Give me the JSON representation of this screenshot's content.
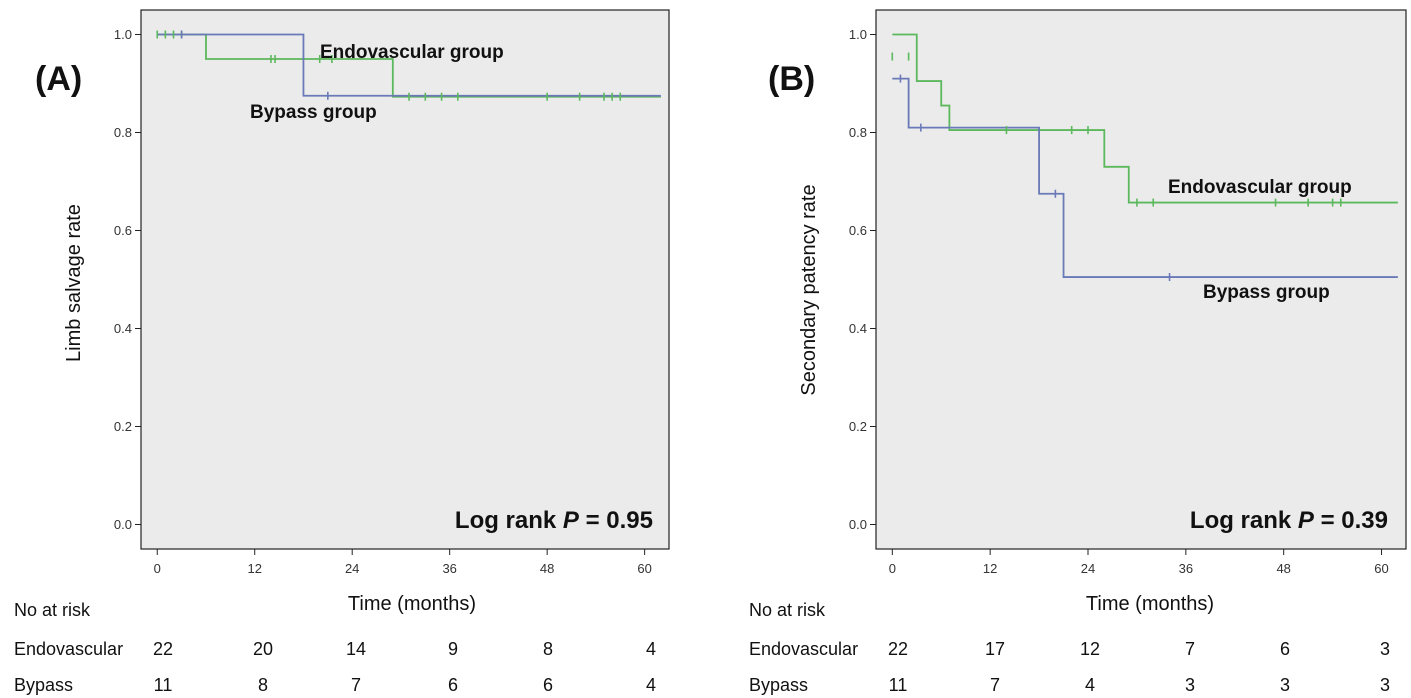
{
  "chart_data": [
    {
      "type": "line",
      "subtype": "kaplan-meier",
      "panel_label": "(A)",
      "ylabel": "Limb salvage rate",
      "xlabel": "Time (months)",
      "xlim": [
        -2,
        63
      ],
      "ylim": [
        -0.05,
        1.05
      ],
      "x_ticks": [
        "0",
        "12",
        "24",
        "36",
        "48",
        "60"
      ],
      "y_ticks": [
        "0.0",
        "0.2",
        "0.4",
        "0.6",
        "0.8",
        "1.0"
      ],
      "grid": false,
      "background": "#ebebeb",
      "stat": {
        "prefix": "Log rank ",
        "symbol": "P",
        "suffix": " = 0.95"
      },
      "series": [
        {
          "name": "Endovascular group",
          "color": "#5cb85c",
          "steps": [
            [
              0,
              1.0
            ],
            [
              6,
              0.95
            ],
            [
              29,
              0.873
            ],
            [
              62,
              0.873
            ]
          ],
          "censored": [
            [
              0,
              1.0
            ],
            [
              1,
              1.0
            ],
            [
              2,
              1.0
            ],
            [
              3,
              1.0
            ],
            [
              14,
              0.95
            ],
            [
              14.5,
              0.95
            ],
            [
              20,
              0.95
            ],
            [
              21.5,
              0.95
            ],
            [
              31,
              0.873
            ],
            [
              33,
              0.873
            ],
            [
              35,
              0.873
            ],
            [
              37,
              0.873
            ],
            [
              48,
              0.873
            ],
            [
              52,
              0.873
            ],
            [
              55,
              0.873
            ],
            [
              56,
              0.873
            ],
            [
              57,
              0.873
            ]
          ]
        },
        {
          "name": "Bypass group",
          "color": "#6a79b7",
          "steps": [
            [
              0,
              1.0
            ],
            [
              18,
              0.875
            ],
            [
              62,
              0.875
            ]
          ],
          "censored": [
            [
              3,
              1.0
            ],
            [
              21,
              0.875
            ]
          ]
        }
      ],
      "risk_table": {
        "header": "No at risk",
        "rows": [
          {
            "label": "Endovascular",
            "values": [
              "22",
              "20",
              "14",
              "9",
              "8",
              "4"
            ]
          },
          {
            "label": "Bypass",
            "values": [
              "11",
              "8",
              "7",
              "6",
              "6",
              "4"
            ]
          }
        ]
      }
    },
    {
      "type": "line",
      "subtype": "kaplan-meier",
      "panel_label": "(B)",
      "ylabel": "Secondary patency rate",
      "xlabel": "Time (months)",
      "xlim": [
        -2,
        63
      ],
      "ylim": [
        -0.05,
        1.05
      ],
      "x_ticks": [
        "0",
        "12",
        "24",
        "36",
        "48",
        "60"
      ],
      "y_ticks": [
        "0.0",
        "0.2",
        "0.4",
        "0.6",
        "0.8",
        "1.0"
      ],
      "grid": false,
      "background": "#ebebeb",
      "stat": {
        "prefix": "Log rank ",
        "symbol": "P",
        "suffix": " = 0.39"
      },
      "series": [
        {
          "name": "Endovascular group",
          "color": "#5cb85c",
          "steps": [
            [
              0,
              1.0
            ],
            [
              3,
              0.905
            ],
            [
              6,
              0.855
            ],
            [
              7,
              0.805
            ],
            [
              26,
              0.73
            ],
            [
              29,
              0.657
            ],
            [
              62,
              0.657
            ]
          ],
          "censored": [
            [
              0,
              0.955
            ],
            [
              2,
              0.955
            ],
            [
              14,
              0.805
            ],
            [
              22,
              0.805
            ],
            [
              24,
              0.805
            ],
            [
              30,
              0.657
            ],
            [
              32,
              0.657
            ],
            [
              47,
              0.657
            ],
            [
              51,
              0.657
            ],
            [
              54,
              0.657
            ],
            [
              55,
              0.657
            ]
          ]
        },
        {
          "name": "Bypass group",
          "color": "#6a79b7",
          "steps": [
            [
              0,
              0.91
            ],
            [
              2,
              0.81
            ],
            [
              18,
              0.675
            ],
            [
              21,
              0.505
            ],
            [
              62,
              0.505
            ]
          ],
          "censored": [
            [
              1,
              0.91
            ],
            [
              3.5,
              0.81
            ],
            [
              20,
              0.675
            ],
            [
              34,
              0.505
            ]
          ]
        }
      ],
      "risk_table": {
        "header": "No at risk",
        "rows": [
          {
            "label": "Endovascular",
            "values": [
              "22",
              "17",
              "12",
              "7",
              "6",
              "3"
            ]
          },
          {
            "label": "Bypass",
            "values": [
              "11",
              "7",
              "4",
              "3",
              "3",
              "3"
            ]
          }
        ]
      }
    }
  ]
}
